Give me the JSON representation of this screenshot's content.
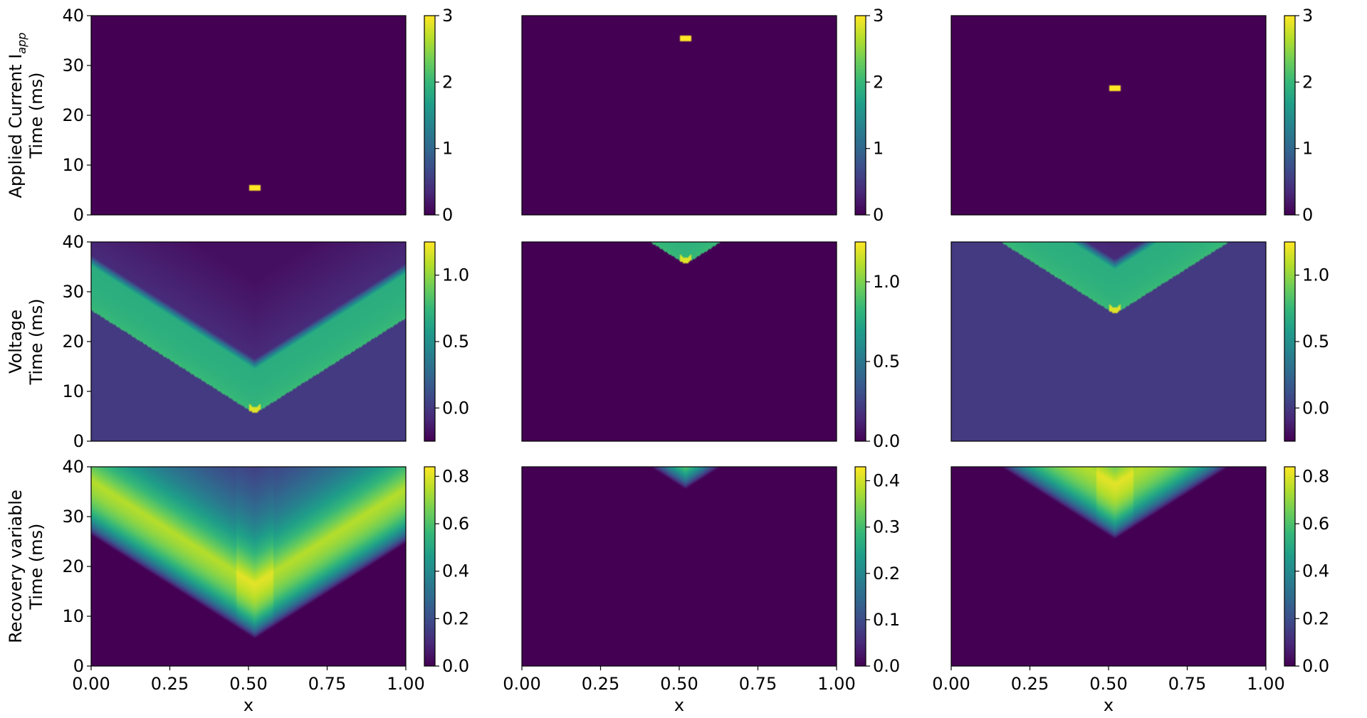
{
  "colormap": "viridis",
  "colors": {
    "viridis": [
      "#440154",
      "#482878",
      "#3e4a89",
      "#31688e",
      "#26828e",
      "#1f9e89",
      "#35b779",
      "#6ece58",
      "#b5de2b",
      "#fde725"
    ]
  },
  "chart_data": {
    "type": "heatmap",
    "grid": false,
    "xlabel": "x",
    "xlim": [
      0.0,
      1.0
    ],
    "xticks": [
      "0.00",
      "0.25",
      "0.50",
      "0.75",
      "1.00"
    ],
    "ylim": [
      0,
      40
    ],
    "yticks": [
      "0",
      "10",
      "20",
      "30",
      "40"
    ],
    "rows": [
      {
        "ylabel_top": "Applied Current I",
        "ylabel_sub": "app",
        "ylabel_bottom": "Time (ms)",
        "field": "stimulus",
        "panels": [
          {
            "stim_x": 0.52,
            "stim_t": 5.5,
            "cbar_range": [
              0,
              3
            ],
            "cbar_ticks": [
              "0",
              "1",
              "2",
              "3"
            ]
          },
          {
            "stim_x": 0.52,
            "stim_t": 35.5,
            "cbar_range": [
              0,
              3
            ],
            "cbar_ticks": [
              "0",
              "1",
              "2",
              "3"
            ]
          },
          {
            "stim_x": 0.52,
            "stim_t": 25.5,
            "cbar_range": [
              0,
              3
            ],
            "cbar_ticks": [
              "0",
              "1",
              "2",
              "3"
            ]
          }
        ]
      },
      {
        "ylabel_top": "Voltage",
        "ylabel_bottom": "Time (ms)",
        "field": "voltage",
        "panels": [
          {
            "stim_x": 0.52,
            "stim_t": 5.5,
            "cbar_range": [
              -0.25,
              1.25
            ],
            "cbar_ticks": [
              "0.0",
              "0.5",
              "1.0"
            ],
            "cbar_tick_values": [
              0.0,
              0.5,
              1.0
            ]
          },
          {
            "stim_x": 0.52,
            "stim_t": 35.5,
            "cbar_range": [
              0.0,
              1.25
            ],
            "cbar_ticks": [
              "0.0",
              "0.5",
              "1.0"
            ],
            "cbar_tick_values": [
              0.0,
              0.5,
              1.0
            ]
          },
          {
            "stim_x": 0.52,
            "stim_t": 25.5,
            "cbar_range": [
              -0.25,
              1.25
            ],
            "cbar_ticks": [
              "0.0",
              "0.5",
              "1.0"
            ],
            "cbar_tick_values": [
              0.0,
              0.5,
              1.0
            ]
          }
        ]
      },
      {
        "ylabel_top": "Recovery variable",
        "ylabel_bottom": "Time (ms)",
        "field": "recovery",
        "panels": [
          {
            "stim_x": 0.52,
            "stim_t": 5.5,
            "cbar_range": [
              0.0,
              0.84
            ],
            "cbar_ticks": [
              "0.0",
              "0.2",
              "0.4",
              "0.6",
              "0.8"
            ],
            "cbar_tick_values": [
              0.0,
              0.2,
              0.4,
              0.6,
              0.8
            ]
          },
          {
            "stim_x": 0.52,
            "stim_t": 35.5,
            "cbar_range": [
              0.0,
              0.43
            ],
            "cbar_ticks": [
              "0.0",
              "0.1",
              "0.2",
              "0.3",
              "0.4"
            ],
            "cbar_tick_values": [
              0.0,
              0.1,
              0.2,
              0.3,
              0.4
            ]
          },
          {
            "stim_x": 0.52,
            "stim_t": 25.5,
            "cbar_range": [
              0.0,
              0.84
            ],
            "cbar_ticks": [
              "0.0",
              "0.2",
              "0.4",
              "0.6",
              "0.8"
            ],
            "cbar_tick_values": [
              0.0,
              0.2,
              0.4,
              0.6,
              0.8
            ]
          }
        ]
      }
    ]
  }
}
